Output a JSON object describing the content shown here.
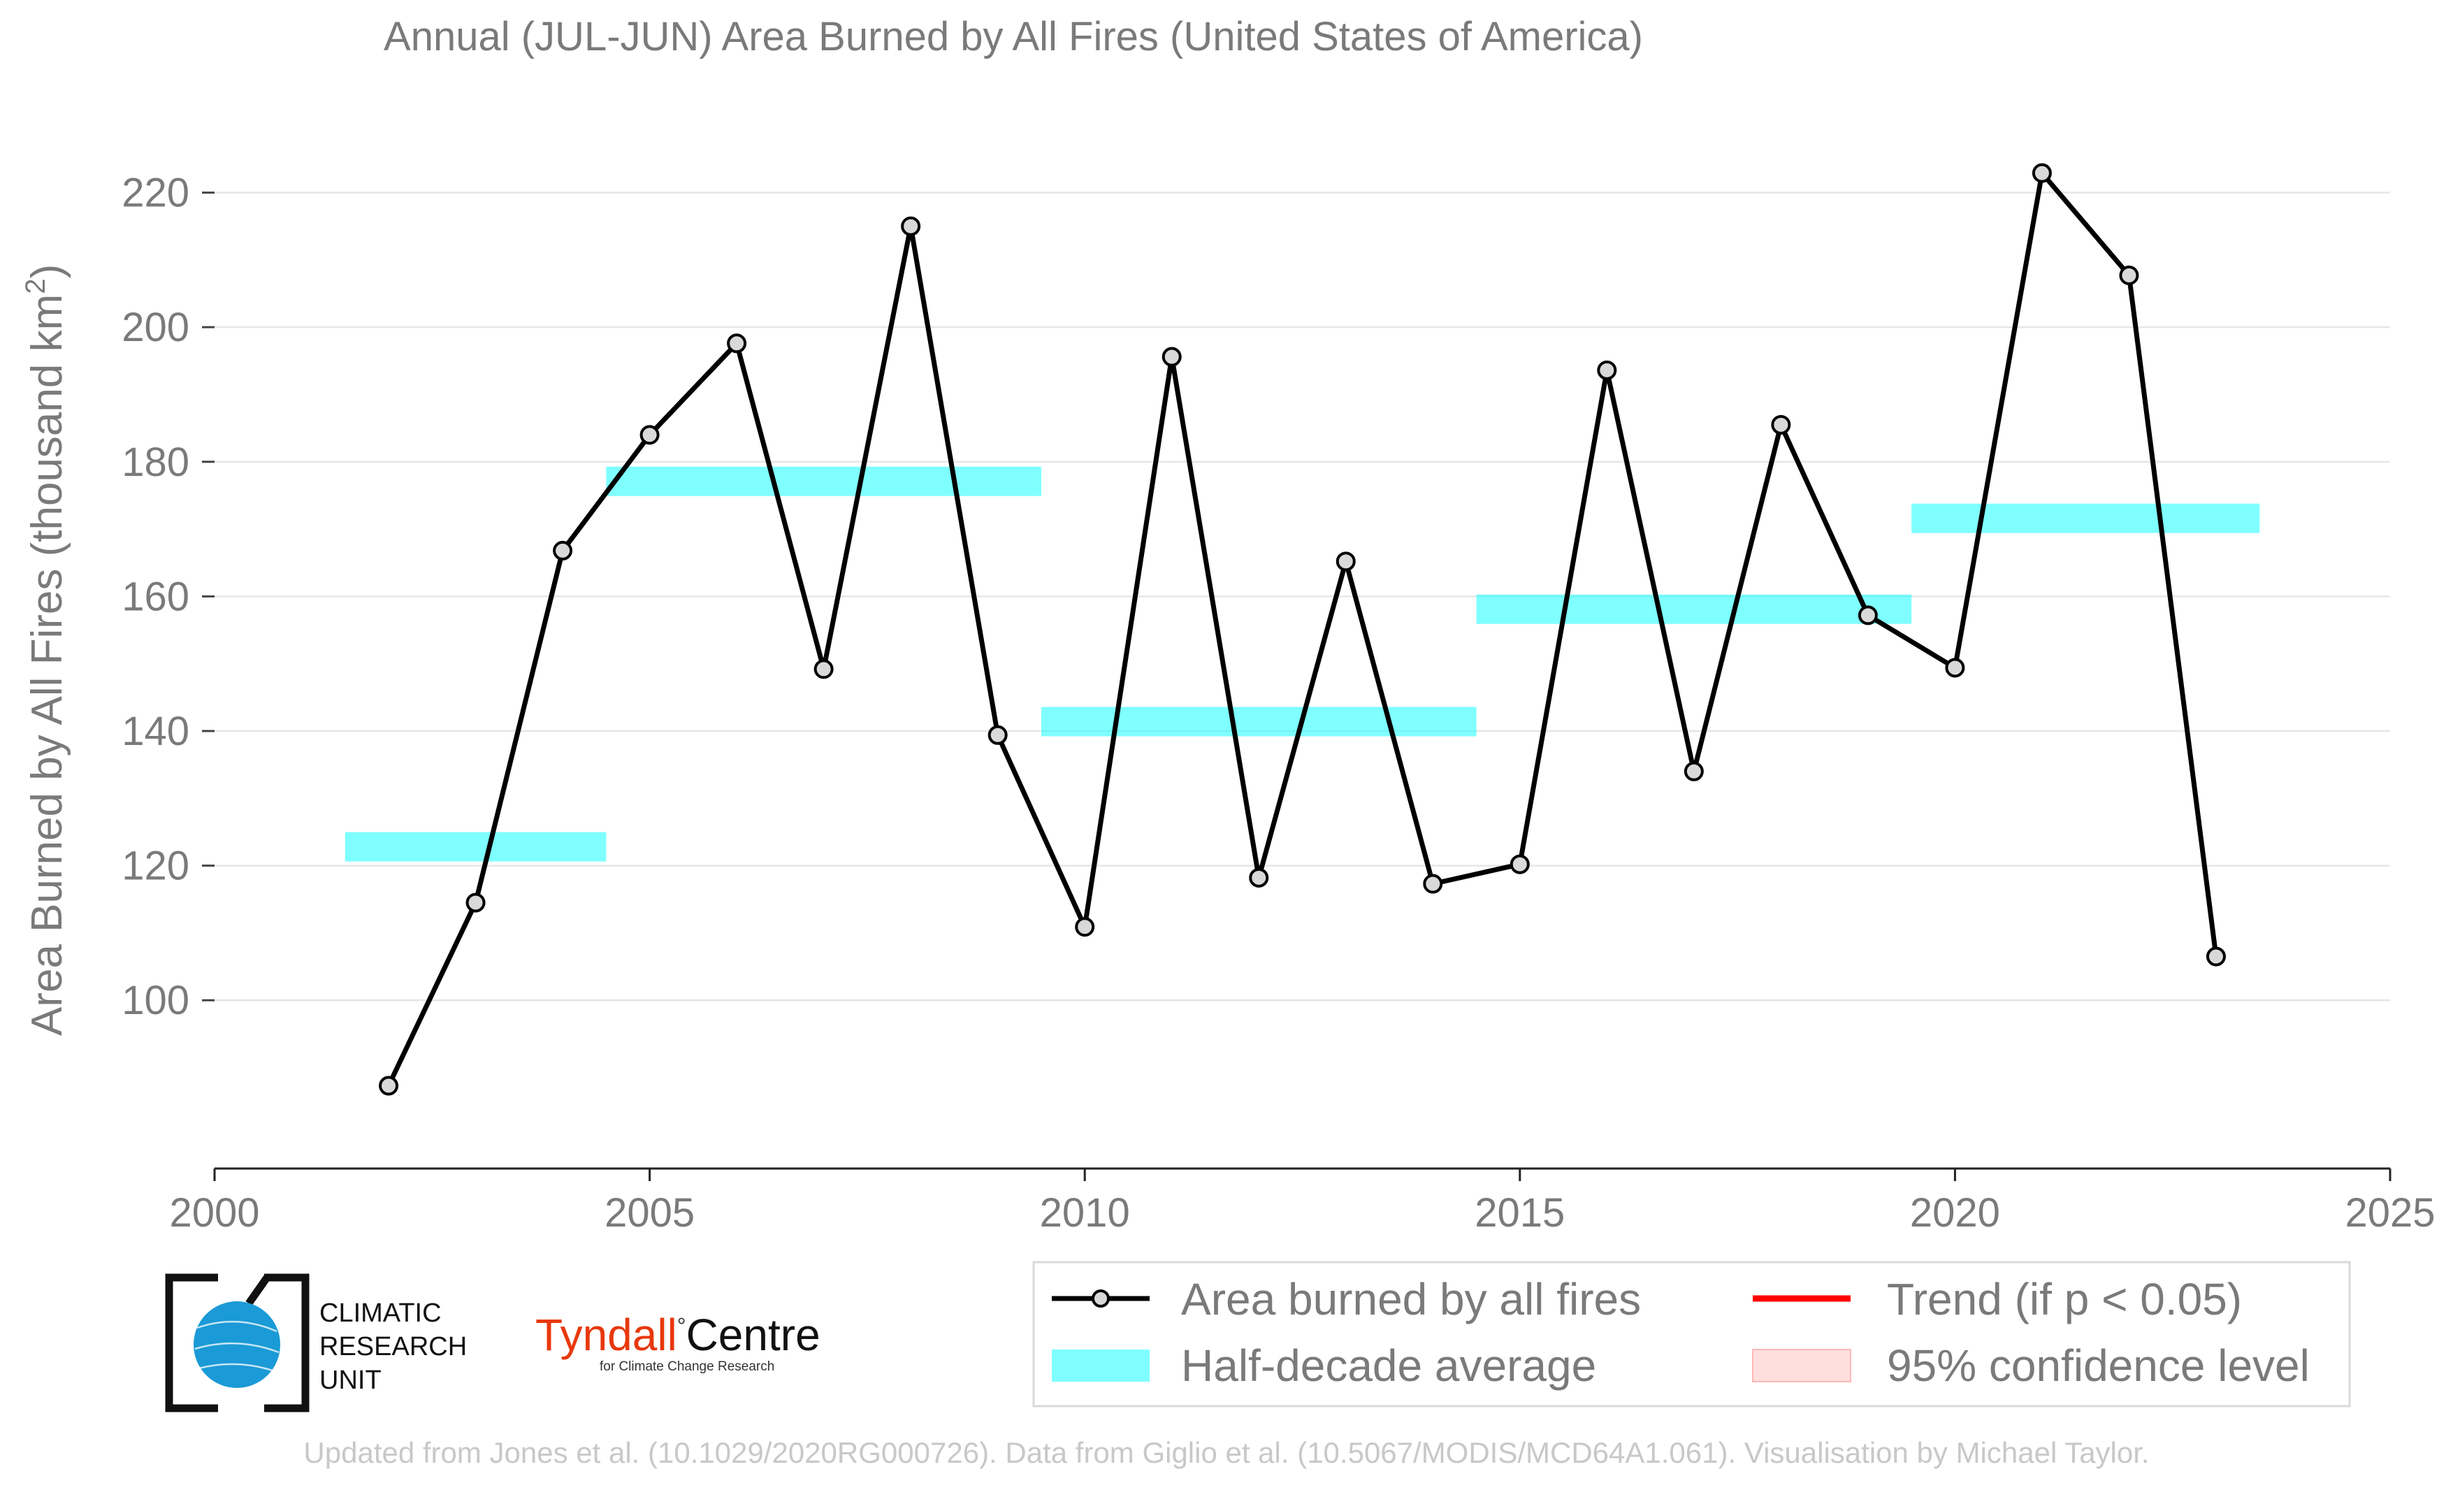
{
  "chart_data": {
    "type": "line",
    "title": "Annual (JUL-JUN) Area Burned by All Fires (United States of America)",
    "ylabel_main": "Area Burned by All Fires (thousand km",
    "ylabel_sup": "2",
    "ylabel_close": ")",
    "xlim": [
      2000,
      2025
    ],
    "ylim": [
      75,
      232
    ],
    "x_ticks": [
      2000,
      2005,
      2010,
      2015,
      2020,
      2025
    ],
    "y_ticks": [
      100,
      120,
      140,
      160,
      180,
      200,
      220
    ],
    "grid": "horizontal",
    "series": [
      {
        "name": "Area burned by all fires",
        "color": "#000000",
        "marker_fill": "#d9d9d9",
        "x": [
          2002,
          2003,
          2004,
          2005,
          2006,
          2007,
          2008,
          2009,
          2010,
          2011,
          2012,
          2013,
          2014,
          2015,
          2016,
          2017,
          2018,
          2019,
          2020,
          2021,
          2022,
          2023
        ],
        "y": [
          87.3,
          114.5,
          166.8,
          184.0,
          197.6,
          149.2,
          215.0,
          139.4,
          110.9,
          195.6,
          118.2,
          165.2,
          117.3,
          120.2,
          193.6,
          134.0,
          185.5,
          157.2,
          149.4,
          222.9,
          207.7,
          106.5
        ]
      }
    ],
    "half_decade_averages": {
      "name": "Half-decade average",
      "color": "#00ffff",
      "segments": [
        {
          "x0": 2001.5,
          "x1": 2004.5,
          "y": 122.8
        },
        {
          "x0": 2004.5,
          "x1": 2009.5,
          "y": 177.1
        },
        {
          "x0": 2009.5,
          "x1": 2014.5,
          "y": 141.4
        },
        {
          "x0": 2014.5,
          "x1": 2019.5,
          "y": 158.1
        },
        {
          "x0": 2019.5,
          "x1": 2023.5,
          "y": 171.6
        }
      ]
    },
    "legend": {
      "placement": "bottom-right",
      "entries": [
        {
          "label": "Area burned by all fires",
          "kind": "line-marker",
          "color": "#000000"
        },
        {
          "label": "Trend (if p < 0.05)",
          "kind": "line",
          "color": "#ff0000"
        },
        {
          "label": "Half-decade average",
          "kind": "band",
          "color": "#00ffff"
        },
        {
          "label": "95% confidence level",
          "kind": "patch",
          "color": "#ffdede"
        }
      ]
    }
  },
  "logos": {
    "cru_lines": [
      "CLIMATIC",
      "RESEARCH",
      "UNIT"
    ],
    "tyndall_name": "Tyndall",
    "tyndall_degree": "°",
    "tyndall_centre": "Centre",
    "tyndall_sub": "for Climate Change Research"
  },
  "credit": "Updated from Jones et al. (10.1029/2020RG000726). Data from Giglio et al. (10.5067/MODIS/MCD64A1.061). Visualisation by Michael Taylor.",
  "colors": {
    "axis_text": "#7a7a7a",
    "grid": "#e6e6e6",
    "cru_blue": "#1a9ad6",
    "tyndall_red": "#e8380d"
  }
}
